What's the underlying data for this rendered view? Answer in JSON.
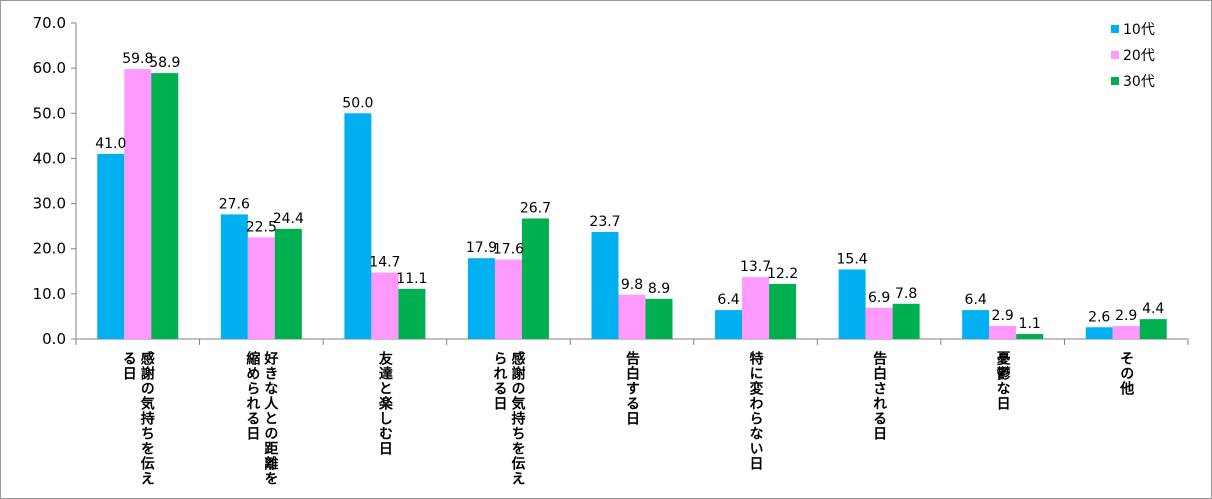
{
  "chart_data": {
    "type": "bar",
    "categories": [
      [
        "感謝の気持ちを伝え",
        "る日"
      ],
      [
        "好きな人との距離を",
        "縮められる日"
      ],
      [
        "友達と楽しむ日"
      ],
      [
        "感謝の気持ちを伝え",
        "られる日"
      ],
      [
        "告白する日"
      ],
      [
        "特に変わらない日"
      ],
      [
        "告白される日"
      ],
      [
        "憂鬱な日"
      ],
      [
        "その他"
      ]
    ],
    "series": [
      {
        "name": "10代",
        "color": "#00b0f0",
        "values": [
          41.0,
          27.6,
          50.0,
          17.9,
          23.7,
          6.4,
          15.4,
          6.4,
          2.6
        ]
      },
      {
        "name": "20代",
        "color": "#ff99ff",
        "values": [
          59.8,
          22.5,
          14.7,
          17.6,
          9.8,
          13.7,
          6.9,
          2.9,
          2.9
        ]
      },
      {
        "name": "30代",
        "color": "#00b050",
        "values": [
          58.9,
          24.4,
          11.1,
          26.7,
          8.9,
          12.2,
          7.8,
          1.1,
          4.4
        ]
      }
    ],
    "data_labels": [
      [
        "41.0",
        "27.6",
        "50.0",
        "17.9",
        "23.7",
        "6.4",
        "15.4",
        "6.4",
        "2.6"
      ],
      [
        "59.8",
        "22.5",
        "14.7",
        "17.6",
        "9.8",
        "13.7",
        "6.9",
        "2.9",
        "2.9"
      ],
      [
        "58.9",
        "24.4",
        "11.1",
        "26.7",
        "8.9",
        "12.2",
        "7.8",
        "1.1",
        "4.4"
      ]
    ],
    "ylim": [
      0,
      70
    ],
    "yticks": [
      "0.0",
      "10.0",
      "20.0",
      "30.0",
      "40.0",
      "50.0",
      "60.0",
      "70.0"
    ],
    "grid": false,
    "legend": "top-right"
  }
}
